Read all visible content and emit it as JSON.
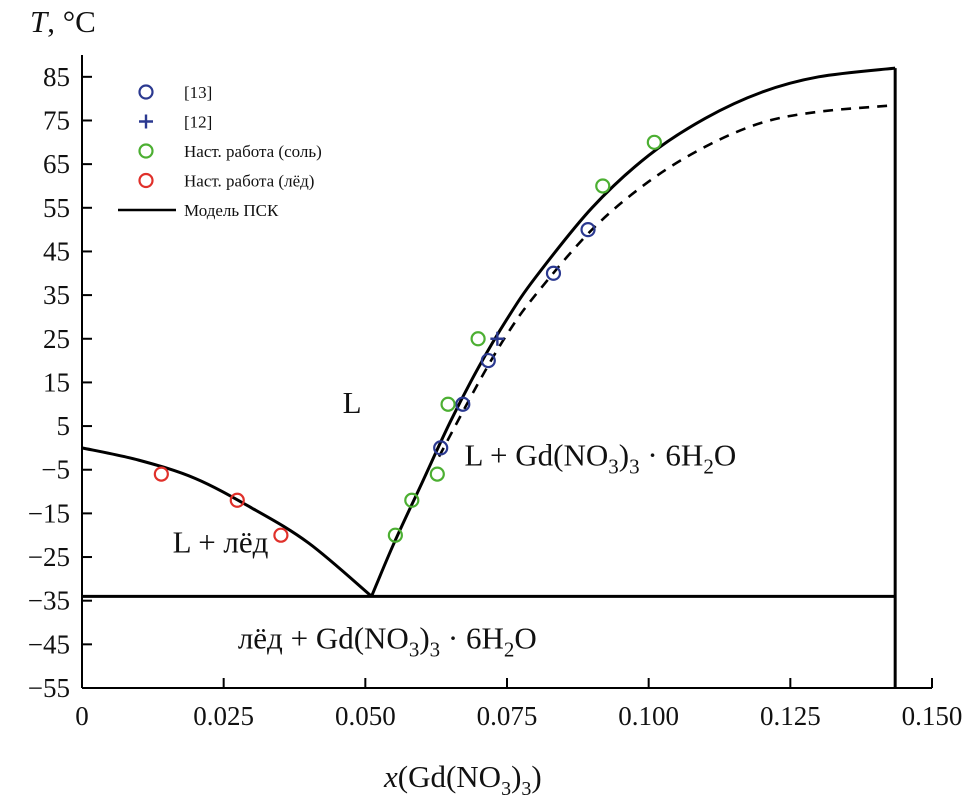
{
  "chart_data": {
    "type": "scatter",
    "title": "",
    "ylabel": "T, °C",
    "xlabel": "x(Gd(NO3)3)",
    "xlabel_parts": {
      "prefix": "x",
      "open": "(Gd(NO",
      "sub": "3",
      "close": ")",
      "sub2": "3",
      "end": ")"
    },
    "ylabel_parts": {
      "var": "T",
      "unit": ", °C"
    },
    "xlim": [
      0,
      0.15
    ],
    "ylim": [
      -55,
      90
    ],
    "x_ticks": [
      0,
      0.025,
      0.05,
      0.075,
      0.1,
      0.125,
      0.15
    ],
    "x_tick_labels": [
      "0",
      "0.025",
      "0.050",
      "0.075",
      "0.100",
      "0.125",
      "0.150"
    ],
    "y_ticks": [
      85,
      75,
      65,
      55,
      45,
      35,
      25,
      15,
      5,
      -5,
      -15,
      -25,
      -35,
      -45,
      -55
    ],
    "y_tick_labels": [
      "85",
      "75",
      "65",
      "55",
      "45",
      "35",
      "25",
      "15",
      "5",
      "−5",
      "−15",
      "−25",
      "−35",
      "−45",
      "−55"
    ],
    "legend": {
      "position": "top-left",
      "entries": [
        {
          "label": "[13]",
          "marker": "circle",
          "color": "#2b3990"
        },
        {
          "label": "[12]",
          "marker": "plus",
          "color": "#2b3990"
        },
        {
          "label": "Наст. работа (соль)",
          "marker": "circle",
          "color": "#4caf32"
        },
        {
          "label": "Наст. работа (лёд)",
          "marker": "circle",
          "color": "#e0302a"
        },
        {
          "label": "Модель ПСК",
          "marker": "line",
          "color": "#000000"
        }
      ]
    },
    "series": [
      {
        "name": "[13]",
        "marker": "circle",
        "color": "#2b3990",
        "x": [
          0.0633,
          0.0672,
          0.0717,
          0.0832,
          0.0893
        ],
        "y": [
          0,
          10,
          20,
          40,
          50
        ]
      },
      {
        "name": "[12]",
        "marker": "plus",
        "color": "#2b3990",
        "x": [
          0.0733
        ],
        "y": [
          25
        ]
      },
      {
        "name": "Наст. работа (соль)",
        "marker": "circle",
        "color": "#4caf32",
        "x": [
          0.0553,
          0.0582,
          0.0627,
          0.0646,
          0.0699,
          0.0919,
          0.101
        ],
        "y": [
          -20,
          -12,
          -6,
          10,
          25,
          60,
          70
        ]
      },
      {
        "name": "Наст. работа (лёд)",
        "marker": "circle",
        "color": "#e0302a",
        "x": [
          0.014,
          0.0274,
          0.0351
        ],
        "y": [
          -6,
          -12,
          -20
        ]
      },
      {
        "name": "Модель ПСК (лёд)",
        "type": "line",
        "style": "solid",
        "color": "#000000",
        "x": [
          0,
          0.01,
          0.02,
          0.03,
          0.04,
          0.0511
        ],
        "y": [
          0,
          -2.8,
          -7,
          -13.8,
          -21.8,
          -34
        ]
      },
      {
        "name": "Модель ПСК (соль)",
        "type": "line",
        "style": "solid",
        "color": "#000000",
        "x": [
          0.0511,
          0.055,
          0.06,
          0.065,
          0.07,
          0.075,
          0.08,
          0.09,
          0.1,
          0.11,
          0.12,
          0.13,
          0.1435
        ],
        "y": [
          -34,
          -22,
          -8,
          6,
          18.5,
          29.5,
          39,
          55,
          67,
          75.5,
          81.5,
          85,
          87
        ]
      },
      {
        "name": "Модель ПСК (пунктир)",
        "type": "line",
        "style": "dashed",
        "color": "#000000",
        "x": [
          0.063,
          0.07,
          0.075,
          0.08,
          0.09,
          0.1,
          0.11,
          0.12,
          0.13,
          0.1435
        ],
        "y": [
          -2,
          15,
          26,
          35,
          50,
          61,
          69,
          74.5,
          77,
          78.5
        ]
      },
      {
        "name": "Эвтектика",
        "type": "line",
        "style": "solid",
        "color": "#000000",
        "x": [
          0,
          0.1435
        ],
        "y": [
          -34,
          -34
        ]
      },
      {
        "name": "Состав гидрата",
        "type": "line",
        "style": "solid",
        "color": "#000000",
        "x": [
          0.1435,
          0.1435
        ],
        "y": [
          -55,
          87
        ]
      }
    ],
    "annotations": [
      {
        "text": "L",
        "x": 0.046,
        "y": 8
      },
      {
        "text": "L + лёд",
        "x": 0.016,
        "y": -24
      },
      {
        "text": "L + Gd(NO3)3 · 6H2O",
        "prefix": "L + Gd(NO",
        "sub1": "3",
        "mid": ")",
        "sub2": "3",
        "dot": " · 6H",
        "sub3": "2",
        "end": "O",
        "x": 0.0675,
        "y": -4
      },
      {
        "text": "лёд + Gd(NO3)3 · 6H2O",
        "prefix": "лёд + Gd(NO",
        "sub1": "3",
        "mid": ")",
        "sub2": "3",
        "dot": " · 6H",
        "sub3": "2",
        "end": "O",
        "x": 0.0275,
        "y": -46
      }
    ]
  }
}
